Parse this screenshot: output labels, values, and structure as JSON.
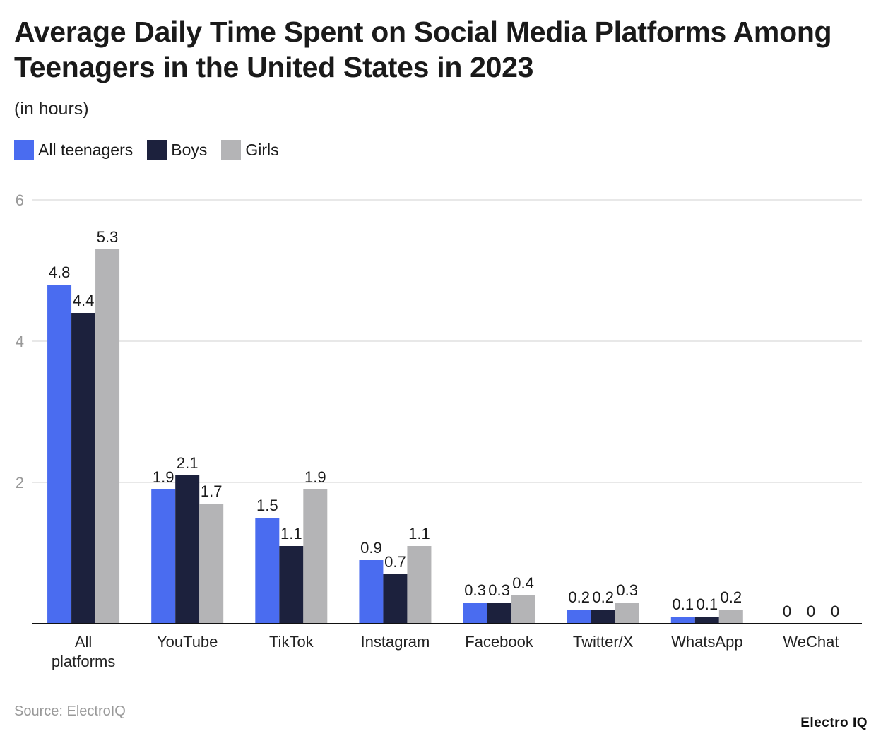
{
  "chart_data": {
    "type": "bar",
    "title": "Average Daily Time Spent on Social Media Platforms Among Teenagers in the United States in 2023",
    "subtitle": "(in hours)",
    "categories": [
      "All platforms",
      "YouTube",
      "TikTok",
      "Instagram",
      "Facebook",
      "Twitter/X",
      "WhatsApp",
      "WeChat"
    ],
    "series": [
      {
        "name": "All teenagers",
        "color": "#4a6cf0",
        "values": [
          4.8,
          1.9,
          1.5,
          0.9,
          0.3,
          0.2,
          0.1,
          0
        ]
      },
      {
        "name": "Boys",
        "color": "#1c213d",
        "values": [
          4.4,
          2.1,
          1.1,
          0.7,
          0.3,
          0.2,
          0.1,
          0
        ]
      },
      {
        "name": "Girls",
        "color": "#b4b4b6",
        "values": [
          5.3,
          1.7,
          1.9,
          1.1,
          0.4,
          0.3,
          0.2,
          0
        ]
      }
    ],
    "yticks": [
      2,
      4,
      6
    ],
    "ylim": [
      0,
      6
    ],
    "grid": true,
    "legend": "top-left",
    "xlabel": "",
    "ylabel": ""
  },
  "source": "Source: ElectroIQ",
  "logo": "Electro IQ"
}
